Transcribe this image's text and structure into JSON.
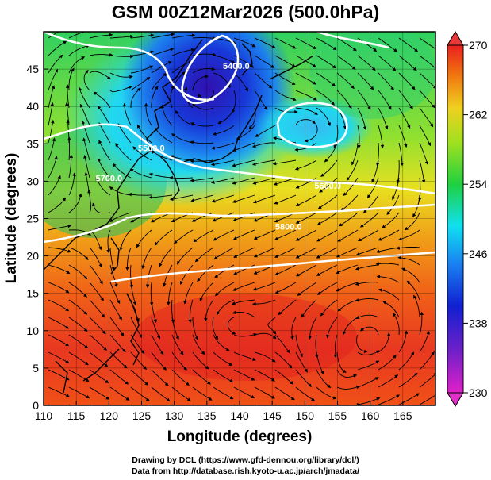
{
  "title": "GSM 00Z12Mar2026 (500.0hPa)",
  "xaxis": {
    "label": "Longitude (degrees)",
    "range": [
      110,
      170
    ],
    "ticks": [
      "110",
      "115",
      "120",
      "125",
      "130",
      "135",
      "140",
      "145",
      "150",
      "155",
      "160",
      "165"
    ]
  },
  "yaxis": {
    "label": "Latitude  (degrees)",
    "range": [
      0,
      50
    ],
    "ticks": [
      "0",
      "5",
      "10",
      "15",
      "20",
      "25",
      "30",
      "35",
      "40",
      "45"
    ]
  },
  "colorbar": {
    "min": 230,
    "max": 270,
    "ticks": [
      "230",
      "238",
      "246",
      "254",
      "262",
      "270"
    ]
  },
  "contours": [
    {
      "label": "5400.0",
      "lon": 139.5,
      "lat": 45.0
    },
    {
      "label": "5500.0",
      "lon": 126.5,
      "lat": 34.0
    },
    {
      "label": "5600.0",
      "lon": 153.5,
      "lat": 29.0
    },
    {
      "label": "5800.0",
      "lon": 147.5,
      "lat": 23.5
    },
    {
      "label": "5700.0",
      "lon": 120.0,
      "lat": 30.0
    }
  ],
  "credits": {
    "line1": "Drawing by DCL (https://www.gfd-dennou.org/library/dcl/)",
    "line2": "Data from http://database.rish.kyoto-u.ac.jp/arch/jmadata/"
  },
  "colors": {
    "frame": "#000000",
    "contour": "#ffffff",
    "coastline": "#000000"
  }
}
